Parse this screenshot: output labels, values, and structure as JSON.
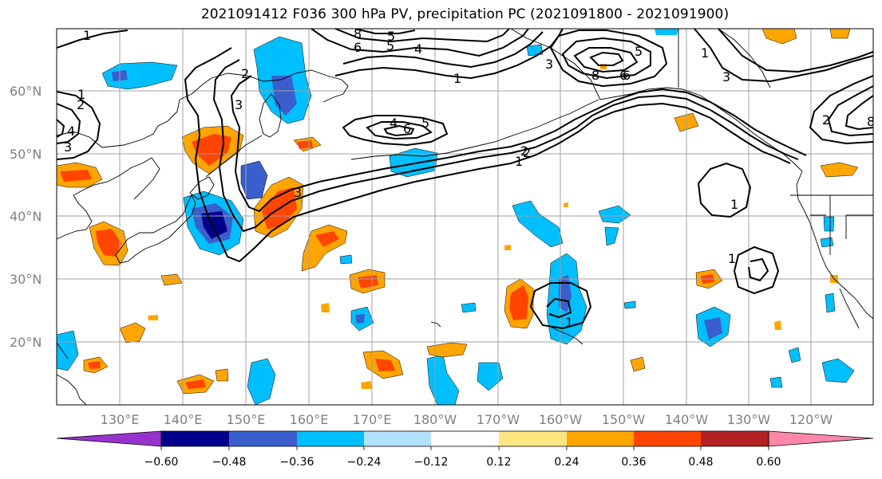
{
  "title": "2021091412 F036 300 hPa PV, precipitation PC (2021091800 - 2021091900)",
  "map": {
    "lat_labels": [
      "60°N",
      "50°N",
      "40°N",
      "30°N",
      "20°N"
    ],
    "lon_labels": [
      "130°E",
      "140°E",
      "150°E",
      "160°E",
      "170°E",
      "180°W",
      "170°W",
      "160°W",
      "150°W",
      "140°W",
      "130°W",
      "120°W"
    ]
  },
  "pv_contour_labels": [
    "1",
    "2",
    "3",
    "4",
    "5",
    "6",
    "8",
    "1",
    "2",
    "3",
    "4",
    "5",
    "6",
    "8",
    "1",
    "2",
    "3",
    "4",
    "5",
    "6",
    "1",
    "2",
    "3",
    "5",
    "6",
    "8",
    "1",
    "2",
    "3",
    "1",
    "1",
    "1"
  ],
  "colorbar": {
    "ticks": [
      "−0.60",
      "−0.48",
      "−0.36",
      "−0.24",
      "−0.12",
      "0.12",
      "0.24",
      "0.36",
      "0.48",
      "0.60"
    ],
    "colors": [
      "#9932cc",
      "#00008b",
      "#3a5fcd",
      "#00bfff",
      "#b0e2ff",
      "#ffffff",
      "#ffe680",
      "#ffa500",
      "#ff4500",
      "#b22222",
      "#ff88aa"
    ]
  }
}
